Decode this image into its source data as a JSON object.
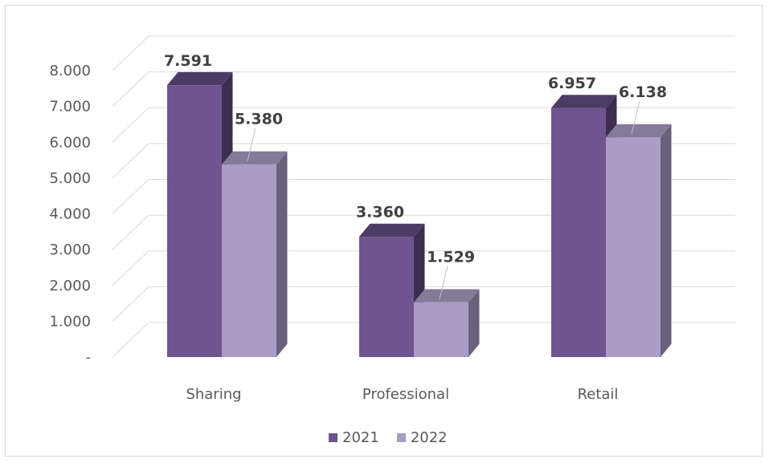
{
  "chart_data": {
    "type": "bar",
    "categories": [
      "Sharing",
      "Professional",
      "Retail"
    ],
    "series": [
      {
        "name": "2021",
        "values": [
          7591,
          3360,
          6957
        ],
        "data_labels": [
          "7.591",
          "3.360",
          "6.957"
        ],
        "color": "#6f5490"
      },
      {
        "name": "2022",
        "values": [
          5380,
          1529,
          6138
        ],
        "data_labels": [
          "5.380",
          "1.529",
          "6.138"
        ],
        "color": "#a99cc6"
      }
    ],
    "y_ticks": [
      "-",
      "1.000",
      "2.000",
      "3.000",
      "4.000",
      "5.000",
      "6.000",
      "7.000",
      "8.000"
    ],
    "ylim": [
      0,
      8000
    ],
    "grid": true,
    "legend_position": "bottom",
    "style": "3d-clustered-column"
  }
}
